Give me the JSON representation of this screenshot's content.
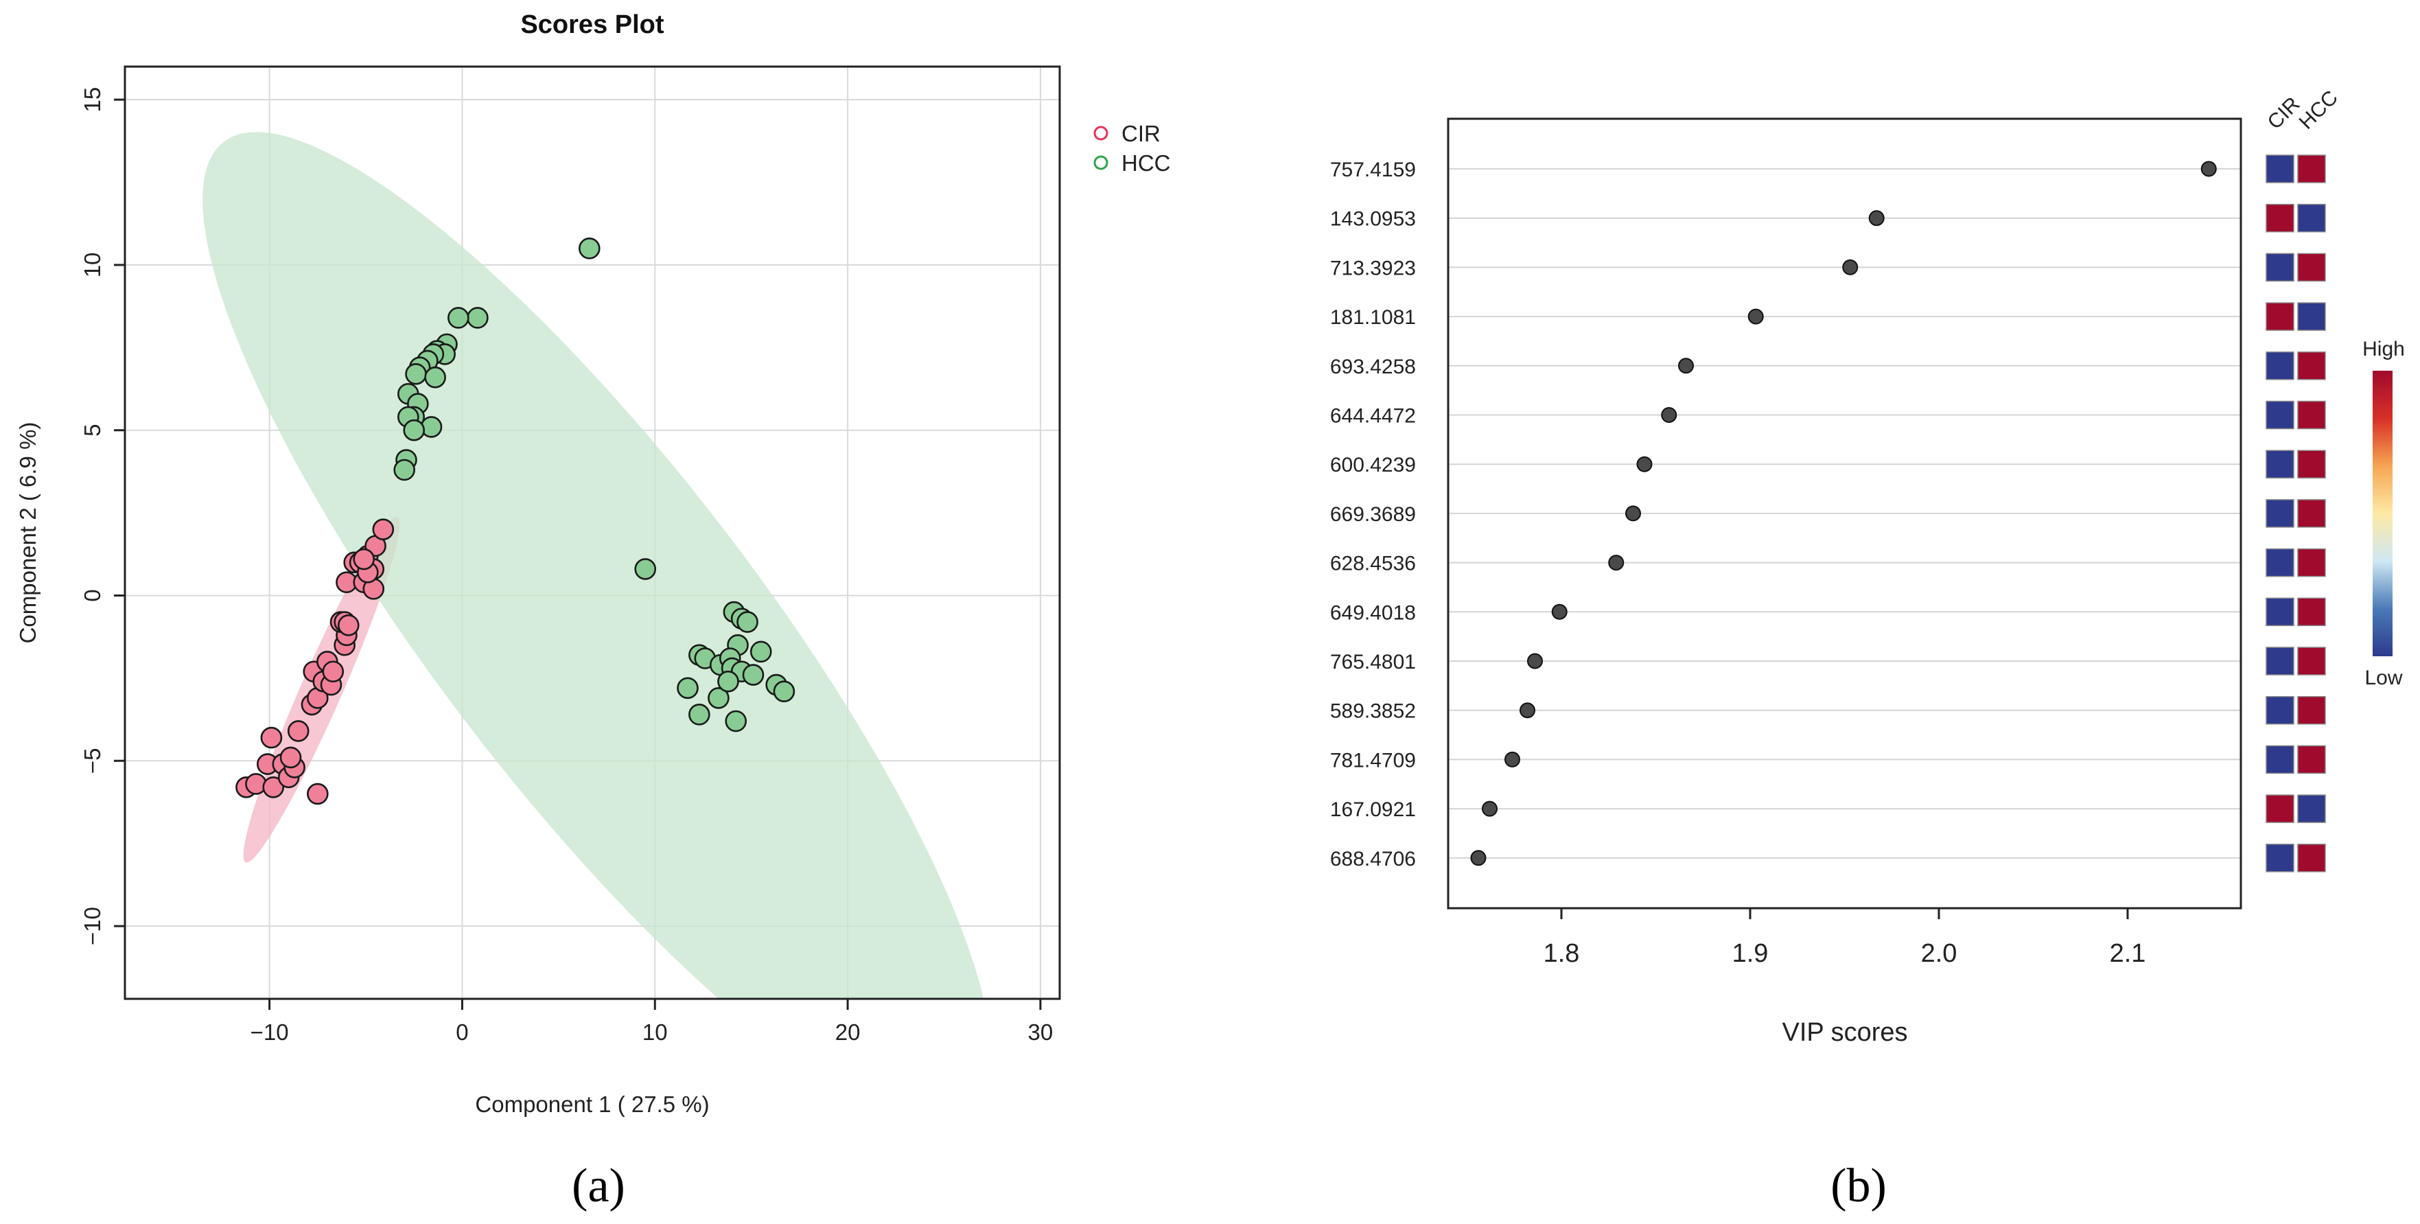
{
  "panels": {
    "a_label": "(a)",
    "b_label": "(b)"
  },
  "chart_data": [
    {
      "type": "scatter",
      "title": "Scores Plot",
      "xlabel": "Component 1 ( 27.5 %)",
      "ylabel": "Component 2 ( 6.9 %)",
      "xlim": [
        -17.5,
        31.0
      ],
      "ylim": [
        -12.2,
        16.0
      ],
      "xticks": [
        -10,
        0,
        10,
        20,
        30
      ],
      "xtick_labels": [
        "−10",
        "0",
        "10",
        "20",
        "30"
      ],
      "yticks": [
        -10,
        -5,
        0,
        5,
        10,
        15
      ],
      "ytick_labels": [
        "−10",
        "−5",
        "0",
        "5",
        "10",
        "15"
      ],
      "grid": true,
      "legend_position": "top-right, outside plot area",
      "series": [
        {
          "name": "CIR",
          "color": "#e8325a",
          "fill": "#f08098",
          "ellipse_color": "#f4b4c4",
          "ellipse": {
            "center": [
              -7.3,
              -2.85
            ],
            "semi_axes": [
              6.55,
              0.93
            ],
            "angle_deg": 52.5
          },
          "points": [
            [
              -11.2,
              -5.8
            ],
            [
              -10.7,
              -5.7
            ],
            [
              -10.1,
              -5.1
            ],
            [
              -9.9,
              -4.3
            ],
            [
              -9.8,
              -5.8
            ],
            [
              -9.3,
              -5.1
            ],
            [
              -9.0,
              -5.5
            ],
            [
              -8.7,
              -5.2
            ],
            [
              -8.9,
              -4.9
            ],
            [
              -8.5,
              -4.1
            ],
            [
              -7.5,
              -6.0
            ],
            [
              -7.8,
              -3.3
            ],
            [
              -7.5,
              -3.1
            ],
            [
              -7.7,
              -2.3
            ],
            [
              -7.2,
              -2.6
            ],
            [
              -6.8,
              -2.7
            ],
            [
              -7.0,
              -2.0
            ],
            [
              -6.7,
              -2.3
            ],
            [
              -6.1,
              -1.5
            ],
            [
              -6.0,
              -1.2
            ],
            [
              -6.3,
              -0.8
            ],
            [
              -6.1,
              -0.8
            ],
            [
              -5.9,
              -0.9
            ],
            [
              -6.0,
              0.4
            ],
            [
              -5.6,
              1.0
            ],
            [
              -5.3,
              1.0
            ],
            [
              -4.9,
              1.2
            ],
            [
              -5.1,
              0.4
            ],
            [
              -4.6,
              0.2
            ],
            [
              -4.6,
              0.8
            ],
            [
              -4.9,
              0.7
            ],
            [
              -4.5,
              1.5
            ],
            [
              -4.1,
              2.0
            ],
            [
              -5.1,
              1.1
            ]
          ]
        },
        {
          "name": "HCC",
          "color": "#2ca54a",
          "fill": "#88cc94",
          "ellipse_color": "#c6e6cc",
          "ellipse": {
            "center": [
              7.0,
              -1.0
            ],
            "semi_axes": [
              24.6,
              6.3
            ],
            "angle_deg": -35.0
          },
          "points": [
            [
              6.6,
              10.5
            ],
            [
              0.8,
              8.4
            ],
            [
              -0.2,
              8.4
            ],
            [
              -0.8,
              7.6
            ],
            [
              -1.3,
              7.4
            ],
            [
              -0.9,
              7.3
            ],
            [
              -1.5,
              7.3
            ],
            [
              -1.8,
              7.1
            ],
            [
              -2.2,
              6.9
            ],
            [
              -2.4,
              6.7
            ],
            [
              -1.4,
              6.6
            ],
            [
              -2.8,
              6.1
            ],
            [
              -2.3,
              5.8
            ],
            [
              -2.5,
              5.4
            ],
            [
              -2.8,
              5.4
            ],
            [
              -1.6,
              5.1
            ],
            [
              -2.5,
              5.0
            ],
            [
              -2.9,
              4.1
            ],
            [
              -3.0,
              3.8
            ],
            [
              9.5,
              0.8
            ],
            [
              14.1,
              -0.5
            ],
            [
              14.5,
              -0.7
            ],
            [
              14.8,
              -0.8
            ],
            [
              15.5,
              -1.7
            ],
            [
              14.3,
              -1.5
            ],
            [
              12.3,
              -1.8
            ],
            [
              12.6,
              -1.9
            ],
            [
              13.4,
              -2.1
            ],
            [
              13.9,
              -1.9
            ],
            [
              14.0,
              -2.2
            ],
            [
              14.5,
              -2.3
            ],
            [
              15.1,
              -2.4
            ],
            [
              16.3,
              -2.7
            ],
            [
              16.7,
              -2.9
            ],
            [
              11.7,
              -2.8
            ],
            [
              13.3,
              -3.1
            ],
            [
              12.3,
              -3.6
            ],
            [
              14.2,
              -3.8
            ],
            [
              13.8,
              -2.6
            ]
          ]
        }
      ]
    },
    {
      "type": "dot",
      "xlabel": "VIP scores",
      "xlim": [
        1.74,
        2.16
      ],
      "xticks": [
        1.8,
        1.9,
        2.0,
        2.1
      ],
      "xtick_labels": [
        "1.8",
        "1.9",
        "2.0",
        "2.1"
      ],
      "categories": [
        "757.4159",
        "143.0953",
        "713.3923",
        "181.1081",
        "693.4258",
        "644.4472",
        "600.4239",
        "669.3689",
        "628.4536",
        "649.4018",
        "765.4801",
        "589.3852",
        "781.4709",
        "167.0921",
        "688.4706"
      ],
      "values": [
        2.143,
        1.967,
        1.953,
        1.903,
        1.866,
        1.857,
        1.844,
        1.838,
        1.829,
        1.799,
        1.786,
        1.782,
        1.774,
        1.762,
        1.756
      ],
      "heatmap_columns": [
        "CIR",
        "HCC"
      ],
      "heatmap_levels": [
        [
          "Low",
          "High"
        ],
        [
          "High",
          "Low"
        ],
        [
          "Low",
          "High"
        ],
        [
          "High",
          "Low"
        ],
        [
          "Low",
          "High"
        ],
        [
          "Low",
          "High"
        ],
        [
          "Low",
          "High"
        ],
        [
          "Low",
          "High"
        ],
        [
          "Low",
          "High"
        ],
        [
          "Low",
          "High"
        ],
        [
          "Low",
          "High"
        ],
        [
          "Low",
          "High"
        ],
        [
          "Low",
          "High"
        ],
        [
          "High",
          "Low"
        ],
        [
          "Low",
          "High"
        ]
      ],
      "colorscale": {
        "low_label": "Low",
        "high_label": "High",
        "low_color": "#2e3a8c",
        "high_color": "#a00a2c",
        "stops": [
          "#2e3a8c",
          "#4a7ab8",
          "#cfe8f3",
          "#fde9a6",
          "#f6a552",
          "#d73027",
          "#a00a2c"
        ]
      }
    }
  ]
}
